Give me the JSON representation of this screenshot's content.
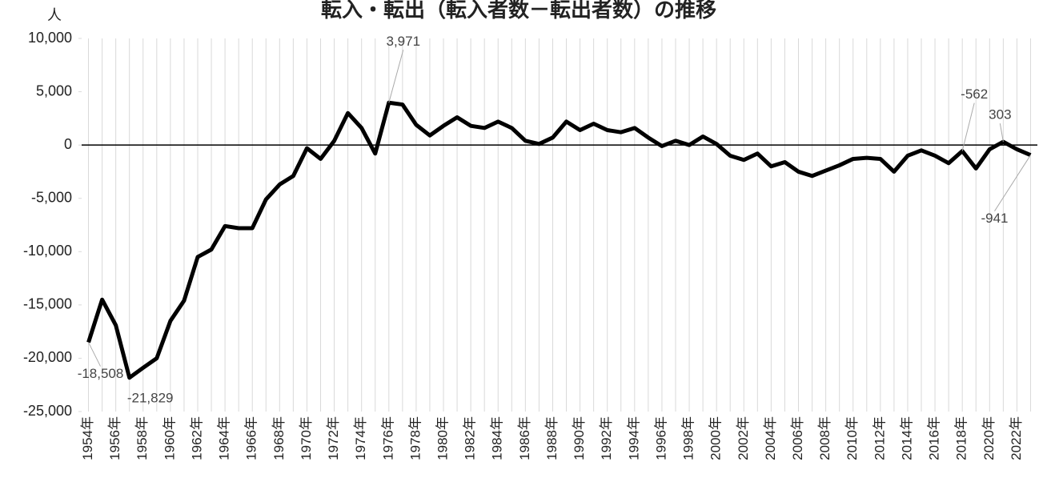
{
  "chart_data": {
    "type": "line",
    "title": "転入・転出（転入者数－転出者数）の推移",
    "y_label": "人",
    "categories": [
      "1954年",
      null,
      "1956年",
      null,
      "1958年",
      null,
      "1960年",
      null,
      "1962年",
      null,
      "1964年",
      null,
      "1966年",
      null,
      "1968年",
      null,
      "1970年",
      null,
      "1972年",
      null,
      "1974年",
      null,
      "1976年",
      null,
      "1978年",
      null,
      "1980年",
      null,
      "1982年",
      null,
      "1984年",
      null,
      "1986年",
      null,
      "1988年",
      null,
      "1990年",
      null,
      "1992年",
      null,
      "1994年",
      null,
      "1996年",
      null,
      "1998年",
      null,
      "2000年",
      null,
      "2002年",
      null,
      "2004年",
      null,
      "2006年",
      null,
      "2008年",
      null,
      "2010年",
      null,
      "2012年",
      null,
      "2014年",
      null,
      "2016年",
      null,
      "2018年",
      null,
      "2020年",
      null,
      "2022年",
      null
    ],
    "values": [
      -18508,
      -14500,
      -16900,
      -21829,
      -20900,
      -20000,
      -16500,
      -14600,
      -10500,
      -9800,
      -7600,
      -7800,
      -7800,
      -5100,
      -3700,
      -2900,
      -300,
      -1300,
      400,
      3000,
      1600,
      -800,
      3971,
      3800,
      1900,
      900,
      1800,
      2600,
      1800,
      1600,
      2200,
      1600,
      400,
      100,
      700,
      2200,
      1400,
      2000,
      1400,
      1200,
      1600,
      700,
      -100,
      400,
      0,
      800,
      100,
      -1000,
      -1400,
      -800,
      -2000,
      -1600,
      -2500,
      -2900,
      -2400,
      -1900,
      -1300,
      -1200,
      -1300,
      -2500,
      -1000,
      -500,
      -1000,
      -1700,
      -562,
      -2200,
      -400,
      303,
      -400,
      -941
    ],
    "value_labels": [
      "-18,508",
      null,
      null,
      "-21,829",
      null,
      null,
      null,
      null,
      null,
      null,
      null,
      null,
      null,
      null,
      null,
      null,
      null,
      null,
      null,
      null,
      null,
      null,
      "3,971",
      null,
      null,
      null,
      null,
      null,
      null,
      null,
      null,
      null,
      null,
      null,
      null,
      null,
      null,
      null,
      null,
      null,
      null,
      null,
      null,
      null,
      null,
      null,
      null,
      null,
      null,
      null,
      null,
      null,
      null,
      null,
      null,
      null,
      null,
      null,
      null,
      null,
      null,
      null,
      null,
      null,
      "-562",
      null,
      null,
      "303",
      null,
      "-941"
    ],
    "color": "#000000",
    "ylim": [
      -25000,
      10000
    ],
    "yticks": [
      {
        "value": -25000,
        "label": "-25,000"
      },
      {
        "value": -20000,
        "label": "-20,000"
      },
      {
        "value": -15000,
        "label": "-15,000"
      },
      {
        "value": -10000,
        "label": "-10,000"
      },
      {
        "value": -5000,
        "label": "-5,000"
      },
      0,
      {
        "value": 5000,
        "label": "5,000"
      },
      {
        "value": 10000,
        "label": "10,000"
      }
    ],
    "grid": "x"
  }
}
